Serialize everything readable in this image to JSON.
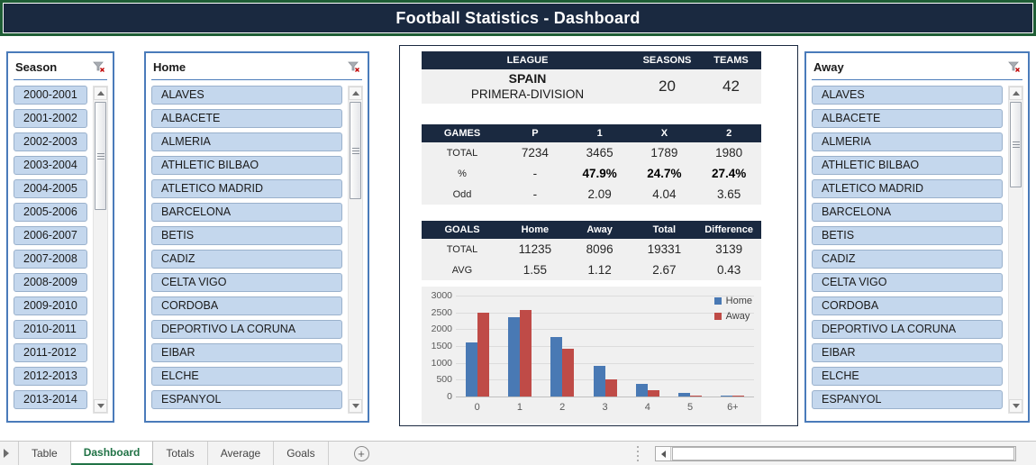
{
  "title": "Football Statistics - Dashboard",
  "colors": {
    "navy": "#1a2940",
    "green_border": "#1e5d35",
    "slicer_border": "#4a7bba",
    "slicer_item_bg": "#c4d7ed",
    "table_bg": "#f0f0f0",
    "home_series": "#4979b4",
    "away_series": "#bf4b47",
    "active_tab_green": "#217346"
  },
  "slicers": {
    "season": {
      "label": "Season",
      "items": [
        "2000-2001",
        "2001-2002",
        "2002-2003",
        "2003-2004",
        "2004-2005",
        "2005-2006",
        "2006-2007",
        "2007-2008",
        "2008-2009",
        "2009-2010",
        "2010-2011",
        "2011-2012",
        "2012-2013",
        "2013-2014"
      ]
    },
    "home": {
      "label": "Home",
      "items": [
        "ALAVES",
        "ALBACETE",
        "ALMERIA",
        "ATHLETIC BILBAO",
        "ATLETICO MADRID",
        "BARCELONA",
        "BETIS",
        "CADIZ",
        "CELTA VIGO",
        "CORDOBA",
        "DEPORTIVO LA CORUNA",
        "EIBAR",
        "ELCHE",
        "ESPANYOL"
      ]
    },
    "away": {
      "label": "Away",
      "items": [
        "ALAVES",
        "ALBACETE",
        "ALMERIA",
        "ATHLETIC BILBAO",
        "ATLETICO MADRID",
        "BARCELONA",
        "BETIS",
        "CADIZ",
        "CELTA VIGO",
        "CORDOBA",
        "DEPORTIVO LA CORUNA",
        "EIBAR",
        "ELCHE",
        "ESPANYOL"
      ]
    }
  },
  "league_table": {
    "headers": [
      "LEAGUE",
      "SEASONS",
      "TEAMS"
    ],
    "country": "SPAIN",
    "division": "PRIMERA-DIVISION",
    "seasons": "20",
    "teams": "42"
  },
  "games_table": {
    "headers": [
      "GAMES",
      "P",
      "1",
      "X",
      "2"
    ],
    "rows": [
      {
        "label": "TOTAL",
        "values": [
          "7234",
          "3465",
          "1789",
          "1980"
        ]
      },
      {
        "label": "%",
        "values": [
          "-",
          "47.9%",
          "24.7%",
          "27.4%"
        ]
      },
      {
        "label": "Odd",
        "values": [
          "-",
          "2.09",
          "4.04",
          "3.65"
        ]
      }
    ]
  },
  "goals_table": {
    "headers": [
      "GOALS",
      "Home",
      "Away",
      "Total",
      "Difference"
    ],
    "rows": [
      {
        "label": "TOTAL",
        "values": [
          "11235",
          "8096",
          "19331",
          "3139"
        ]
      },
      {
        "label": "AVG",
        "values": [
          "1.55",
          "1.12",
          "2.67",
          "0.43"
        ]
      }
    ]
  },
  "chart_data": {
    "type": "bar",
    "categories": [
      "0",
      "1",
      "2",
      "3",
      "4",
      "5",
      "6+"
    ],
    "series": [
      {
        "name": "Home",
        "color": "#4979b4",
        "values": [
          1610,
          2360,
          1780,
          905,
          365,
          120,
          35
        ]
      },
      {
        "name": "Away",
        "color": "#bf4b47",
        "values": [
          2480,
          2560,
          1425,
          505,
          175,
          40,
          10
        ]
      }
    ],
    "title": "",
    "xlabel": "",
    "ylabel": "",
    "ylim": [
      0,
      3000
    ],
    "ytick": 500,
    "grid": true,
    "legend_position": "top-right"
  },
  "tabs": {
    "items": [
      {
        "label": "Table",
        "active": false
      },
      {
        "label": "Dashboard",
        "active": true
      },
      {
        "label": "Totals",
        "active": false
      },
      {
        "label": "Average",
        "active": false
      },
      {
        "label": "Goals",
        "active": false
      }
    ],
    "new_sheet_label": "+"
  }
}
